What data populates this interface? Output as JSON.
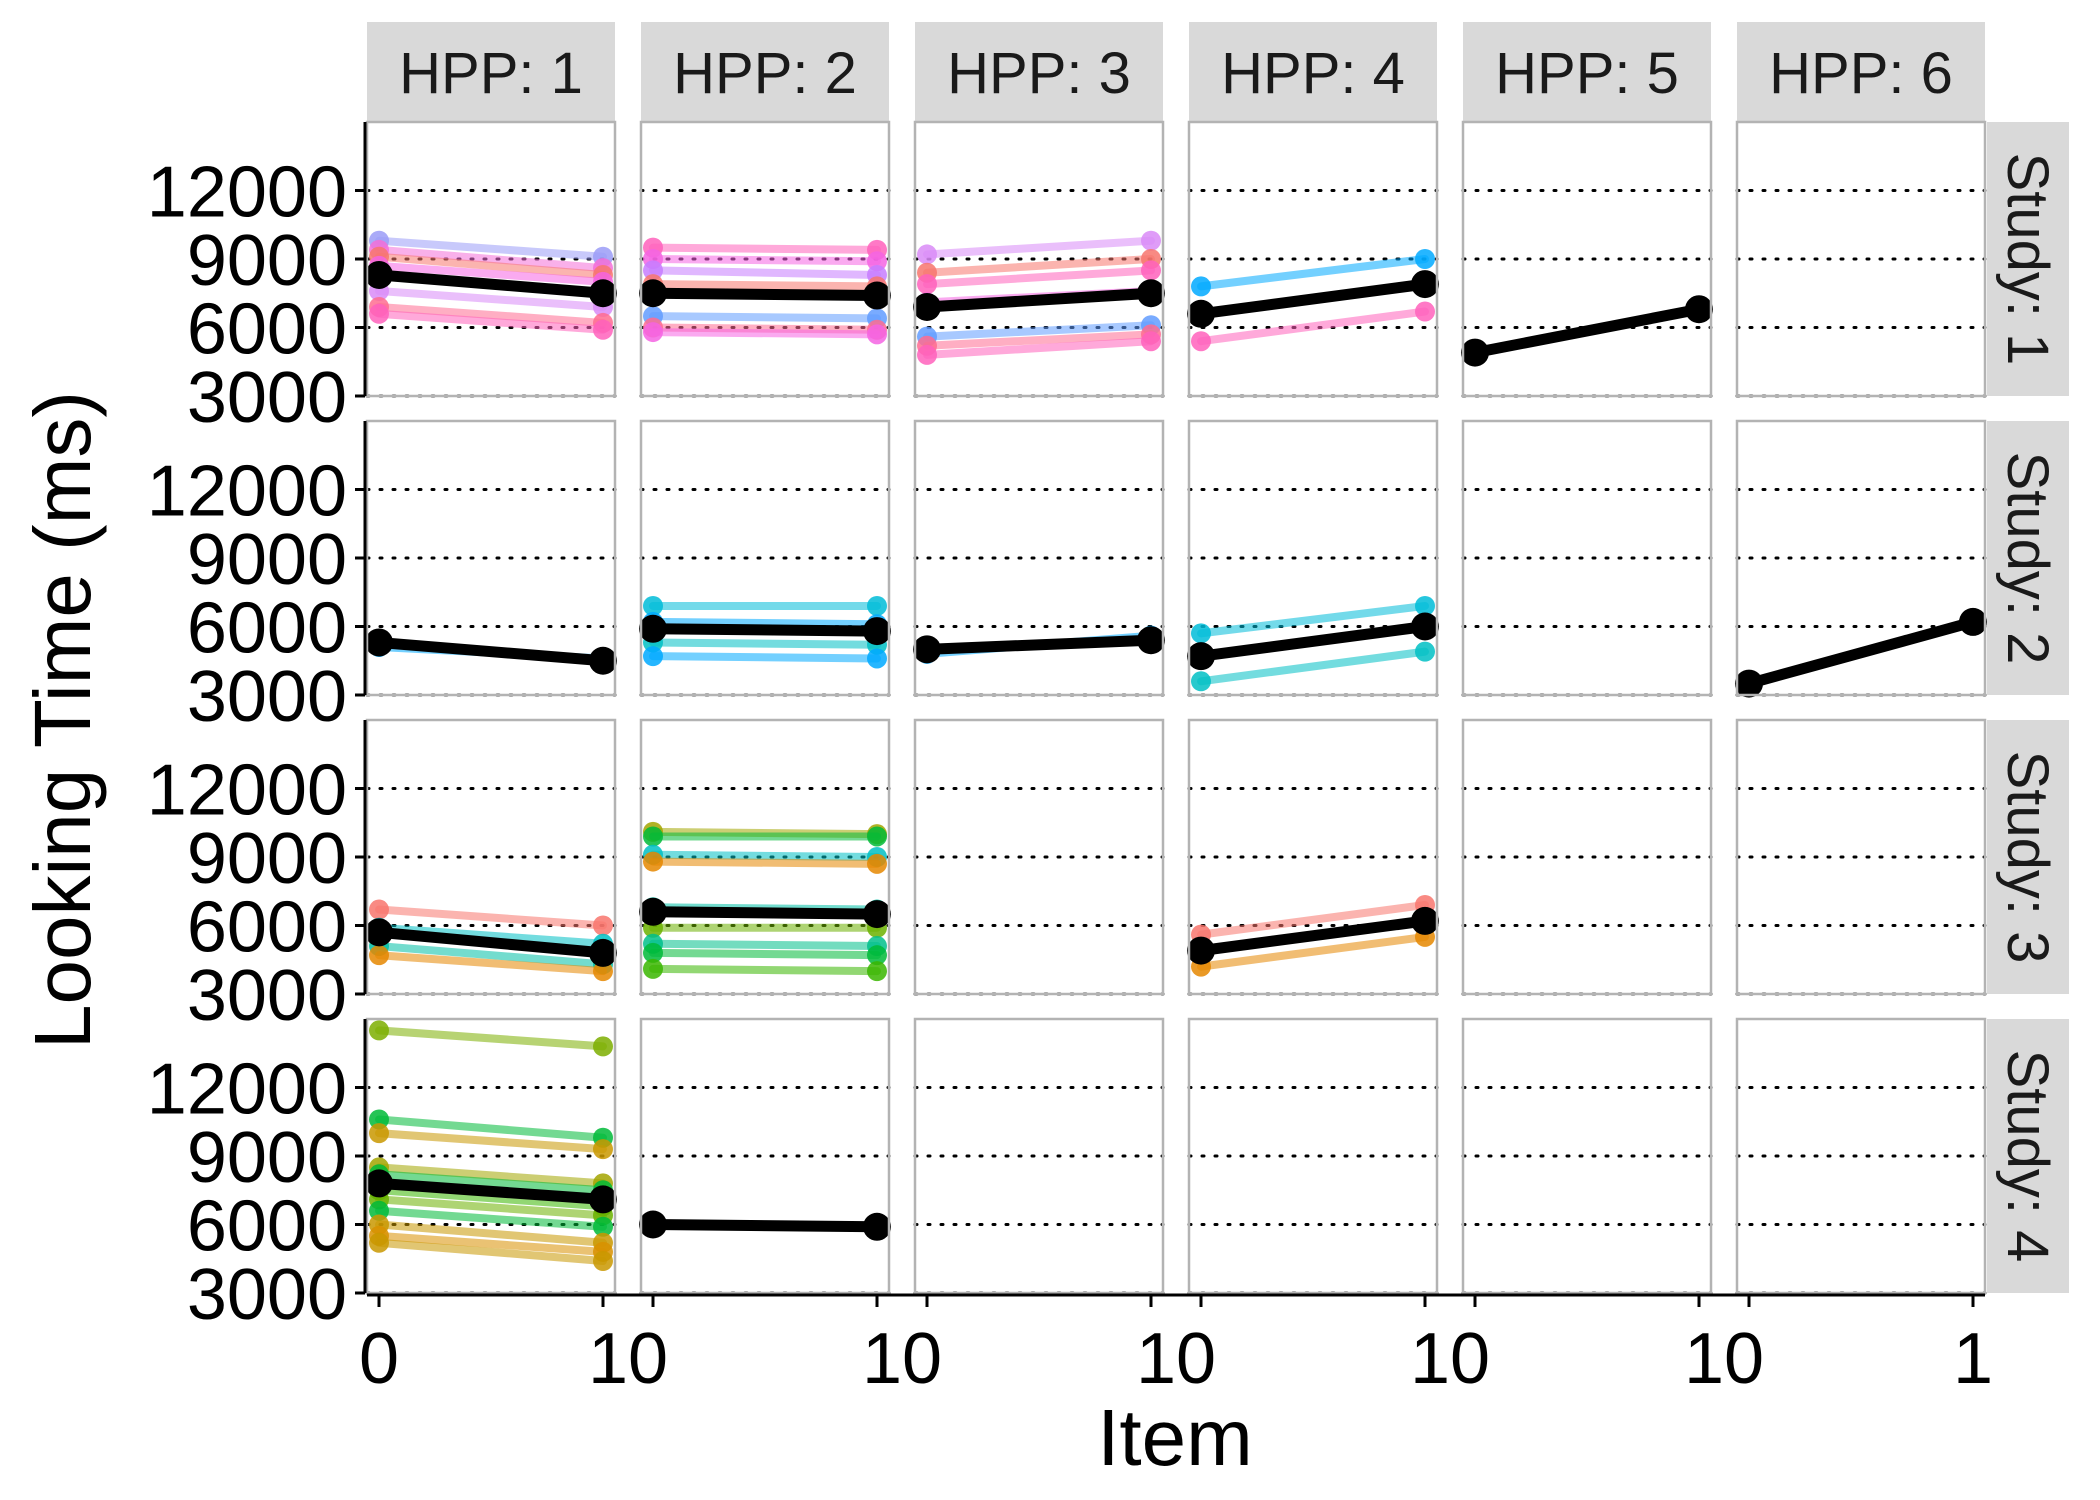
{
  "chart_data": {
    "type": "line",
    "xlabel": "Item",
    "ylabel": "Looking Time (ms)",
    "col_facet_labels": [
      "HPP: 1",
      "HPP: 2",
      "HPP: 3",
      "HPP: 4",
      "HPP: 5",
      "HPP: 6"
    ],
    "row_facet_labels": [
      "Study: 1",
      "Study: 2",
      "Study: 3",
      "Study: 4"
    ],
    "x_tick_labels": [
      "0",
      "10",
      "10",
      "10",
      "10",
      "10",
      "1"
    ],
    "x": [
      0,
      1
    ],
    "ylim": [
      3000,
      15000
    ],
    "y_ticks": [
      3000,
      6000,
      9000,
      12000
    ],
    "y_tick_labels": [
      "3000",
      "6000",
      "9000",
      "12000"
    ],
    "grid": "dotted horizontal at y ticks",
    "legend": "none",
    "mean_color": "#000000",
    "panels": [
      {
        "row": 0,
        "col": 0,
        "series": [
          {
            "color": "#9b9cf7",
            "values": [
              9800,
              9100
            ]
          },
          {
            "color": "#f46fd8",
            "values": [
              9400,
              8600
            ]
          },
          {
            "color": "#f7766d",
            "values": [
              9100,
              8300
            ]
          },
          {
            "color": "#f564e3",
            "values": [
              8700,
              8000
            ]
          },
          {
            "color": "#d98bf7",
            "values": [
              7600,
              6900
            ]
          },
          {
            "color": "#ff6c91",
            "values": [
              6900,
              6200
            ]
          },
          {
            "color": "#ff62bc",
            "values": [
              6600,
              5900
            ]
          }
        ],
        "mean": [
          8300,
          7500
        ]
      },
      {
        "row": 0,
        "col": 1,
        "series": [
          {
            "color": "#ff62bc",
            "values": [
              9500,
              9400
            ]
          },
          {
            "color": "#f564e3",
            "values": [
              9000,
              8900
            ]
          },
          {
            "color": "#c77cff",
            "values": [
              8500,
              8300
            ]
          },
          {
            "color": "#f7766d",
            "values": [
              7900,
              7800
            ]
          },
          {
            "color": "#619cff",
            "values": [
              6500,
              6400
            ]
          },
          {
            "color": "#ff6c91",
            "values": [
              6000,
              5900
            ]
          },
          {
            "color": "#f564e3",
            "values": [
              5800,
              5700
            ]
          }
        ],
        "mean": [
          7500,
          7400
        ]
      },
      {
        "row": 0,
        "col": 2,
        "series": [
          {
            "color": "#d98bf7",
            "values": [
              9200,
              9800
            ]
          },
          {
            "color": "#f7766d",
            "values": [
              8400,
              9000
            ]
          },
          {
            "color": "#ff62bc",
            "values": [
              7900,
              8500
            ]
          },
          {
            "color": "#f564e3",
            "values": [
              7100,
              7600
            ]
          },
          {
            "color": "#619cff",
            "values": [
              5600,
              6100
            ]
          },
          {
            "color": "#ff6c91",
            "values": [
              5200,
              5700
            ]
          },
          {
            "color": "#ff62bc",
            "values": [
              4800,
              5400
            ]
          }
        ],
        "mean": [
          6900,
          7500
        ]
      },
      {
        "row": 0,
        "col": 3,
        "series": [
          {
            "color": "#00a9ff",
            "values": [
              7800,
              9000
            ]
          },
          {
            "color": "#ff62bc",
            "values": [
              5400,
              6700
            ]
          }
        ],
        "mean": [
          6600,
          7900
        ]
      },
      {
        "row": 0,
        "col": 4,
        "series": [],
        "mean": [
          4900,
          6800
        ]
      },
      {
        "row": 0,
        "col": 5,
        "series": [],
        "mean": null
      },
      {
        "row": 1,
        "col": 0,
        "series": [
          {
            "color": "#00a9ff",
            "values": [
              5100,
              4600
            ]
          }
        ],
        "mean": [
          5300,
          4500
        ]
      },
      {
        "row": 1,
        "col": 1,
        "series": [
          {
            "color": "#00bcd8",
            "values": [
              6900,
              6900
            ]
          },
          {
            "color": "#00a9ff",
            "values": [
              6200,
              6100
            ]
          },
          {
            "color": "#00bfc4",
            "values": [
              5300,
              5200
            ]
          },
          {
            "color": "#00a9ff",
            "values": [
              4700,
              4600
            ]
          }
        ],
        "mean": [
          5900,
          5800
        ]
      },
      {
        "row": 1,
        "col": 2,
        "series": [
          {
            "color": "#00a9ff",
            "values": [
              4800,
              5600
            ]
          }
        ],
        "mean": [
          5000,
          5400
        ]
      },
      {
        "row": 1,
        "col": 3,
        "series": [
          {
            "color": "#00bcd8",
            "values": [
              5700,
              6900
            ]
          },
          {
            "color": "#00bfc4",
            "values": [
              3600,
              4900
            ]
          }
        ],
        "mean": [
          4700,
          6000
        ]
      },
      {
        "row": 1,
        "col": 4,
        "series": [],
        "mean": null
      },
      {
        "row": 1,
        "col": 5,
        "series": [],
        "mean": [
          3500,
          6200
        ]
      },
      {
        "row": 2,
        "col": 0,
        "series": [
          {
            "color": "#f8766d",
            "values": [
              6700,
              6000
            ]
          },
          {
            "color": "#00bfc4",
            "values": [
              5900,
              5200
            ]
          },
          {
            "color": "#00bfa5",
            "values": [
              5100,
              4300
            ]
          },
          {
            "color": "#e58700",
            "values": [
              4700,
              4000
            ]
          }
        ],
        "mean": [
          5700,
          4800
        ]
      },
      {
        "row": 2,
        "col": 1,
        "series": [
          {
            "color": "#a3a500",
            "values": [
              10100,
              10000
            ]
          },
          {
            "color": "#00ba38",
            "values": [
              9900,
              9900
            ]
          },
          {
            "color": "#00bfc4",
            "values": [
              9100,
              9000
            ]
          },
          {
            "color": "#e58700",
            "values": [
              8800,
              8700
            ]
          },
          {
            "color": "#00bfa5",
            "values": [
              6800,
              6700
            ]
          },
          {
            "color": "#6bb100",
            "values": [
              5900,
              5900
            ]
          },
          {
            "color": "#00c08b",
            "values": [
              5200,
              5100
            ]
          },
          {
            "color": "#00ba38",
            "values": [
              4800,
              4700
            ]
          },
          {
            "color": "#39b600",
            "values": [
              4100,
              4000
            ]
          }
        ],
        "mean": [
          6600,
          6500
        ]
      },
      {
        "row": 2,
        "col": 2,
        "series": [],
        "mean": null
      },
      {
        "row": 2,
        "col": 3,
        "series": [
          {
            "color": "#f8766d",
            "values": [
              5600,
              6900
            ]
          },
          {
            "color": "#e58700",
            "values": [
              4200,
              5500
            ]
          }
        ],
        "mean": [
          4900,
          6200
        ]
      },
      {
        "row": 2,
        "col": 4,
        "series": [],
        "mean": null
      },
      {
        "row": 2,
        "col": 5,
        "series": [],
        "mean": null
      },
      {
        "row": 3,
        "col": 0,
        "series": [
          {
            "color": "#7cae00",
            "values": [
              14500,
              13800
            ]
          },
          {
            "color": "#00ba38",
            "values": [
              10600,
              9800
            ]
          },
          {
            "color": "#c99800",
            "values": [
              10000,
              9300
            ]
          },
          {
            "color": "#a3a500",
            "values": [
              8500,
              7800
            ]
          },
          {
            "color": "#00ba38",
            "values": [
              8200,
              7500
            ]
          },
          {
            "color": "#39b600",
            "values": [
              7500,
              6800
            ]
          },
          {
            "color": "#6bb100",
            "values": [
              7100,
              6400
            ]
          },
          {
            "color": "#00ba38",
            "values": [
              6600,
              5900
            ]
          },
          {
            "color": "#c99800",
            "values": [
              6000,
              5200
            ]
          },
          {
            "color": "#d89000",
            "values": [
              5500,
              4800
            ]
          },
          {
            "color": "#c99800",
            "values": [
              5200,
              4400
            ]
          }
        ],
        "mean": [
          7800,
          7100
        ]
      },
      {
        "row": 3,
        "col": 1,
        "series": [],
        "mean": [
          6000,
          5900
        ]
      },
      {
        "row": 3,
        "col": 2,
        "series": [],
        "mean": null
      },
      {
        "row": 3,
        "col": 3,
        "series": [],
        "mean": null
      },
      {
        "row": 3,
        "col": 4,
        "series": [],
        "mean": null
      },
      {
        "row": 3,
        "col": 5,
        "series": [],
        "mean": null
      }
    ]
  }
}
